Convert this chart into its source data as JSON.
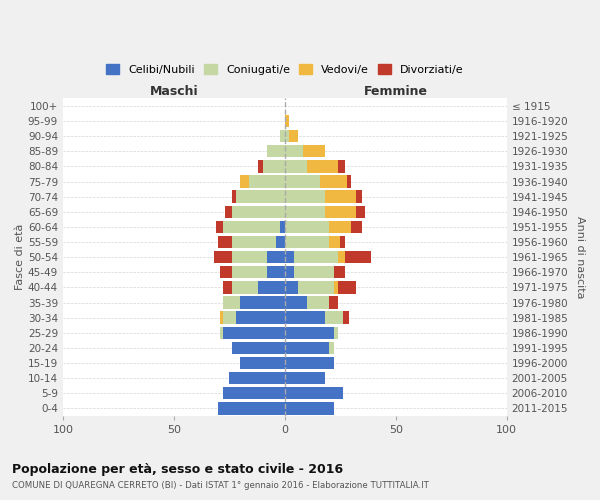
{
  "age_groups": [
    "100+",
    "95-99",
    "90-94",
    "85-89",
    "80-84",
    "75-79",
    "70-74",
    "65-69",
    "60-64",
    "55-59",
    "50-54",
    "45-49",
    "40-44",
    "35-39",
    "30-34",
    "25-29",
    "20-24",
    "15-19",
    "10-14",
    "5-9",
    "0-4"
  ],
  "birth_years": [
    "≤ 1915",
    "1916-1920",
    "1921-1925",
    "1926-1930",
    "1931-1935",
    "1936-1940",
    "1941-1945",
    "1946-1950",
    "1951-1955",
    "1956-1960",
    "1961-1965",
    "1966-1970",
    "1971-1975",
    "1976-1980",
    "1981-1985",
    "1986-1990",
    "1991-1995",
    "1996-2000",
    "2001-2005",
    "2006-2010",
    "2011-2015"
  ],
  "male": {
    "celibi": [
      0,
      0,
      0,
      0,
      0,
      0,
      0,
      0,
      2,
      4,
      8,
      8,
      12,
      20,
      22,
      28,
      24,
      20,
      25,
      28,
      30
    ],
    "coniugati": [
      0,
      0,
      2,
      8,
      10,
      16,
      22,
      24,
      26,
      20,
      16,
      16,
      12,
      8,
      6,
      1,
      0,
      0,
      0,
      0,
      0
    ],
    "vedovi": [
      0,
      0,
      0,
      0,
      0,
      4,
      0,
      0,
      0,
      0,
      0,
      0,
      0,
      0,
      1,
      0,
      0,
      0,
      0,
      0,
      0
    ],
    "divorziati": [
      0,
      0,
      0,
      0,
      2,
      0,
      2,
      3,
      3,
      6,
      8,
      5,
      4,
      0,
      0,
      0,
      0,
      0,
      0,
      0,
      0
    ]
  },
  "female": {
    "nubili": [
      0,
      0,
      0,
      0,
      0,
      0,
      0,
      0,
      0,
      0,
      4,
      4,
      6,
      10,
      18,
      22,
      20,
      22,
      18,
      26,
      22
    ],
    "coniugate": [
      0,
      0,
      2,
      8,
      10,
      16,
      18,
      18,
      20,
      20,
      20,
      18,
      16,
      10,
      8,
      2,
      2,
      0,
      0,
      0,
      0
    ],
    "vedove": [
      0,
      2,
      4,
      10,
      14,
      12,
      14,
      14,
      10,
      5,
      3,
      0,
      2,
      0,
      0,
      0,
      0,
      0,
      0,
      0,
      0
    ],
    "divorziate": [
      0,
      0,
      0,
      0,
      3,
      2,
      3,
      4,
      5,
      2,
      12,
      5,
      8,
      4,
      3,
      0,
      0,
      0,
      0,
      0,
      0
    ]
  },
  "colors": {
    "celibi": "#4472c4",
    "coniugati": "#c5d8a4",
    "vedovi": "#f0b840",
    "divorziati": "#c0392b"
  },
  "xlim": 100,
  "title": "Popolazione per età, sesso e stato civile - 2016",
  "subtitle": "COMUNE DI QUAREGNA CERRETO (BI) - Dati ISTAT 1° gennaio 2016 - Elaborazione TUTTITALIA.IT",
  "ylabel_left": "Fasce di età",
  "ylabel_right": "Anni di nascita",
  "xlabel_left": "Maschi",
  "xlabel_right": "Femmine",
  "legend_labels": [
    "Celibi/Nubili",
    "Coniugati/e",
    "Vedovi/e",
    "Divorziati/e"
  ],
  "bg_color": "#f0f0f0",
  "plot_bg": "#ffffff",
  "grid_color": "#cccccc"
}
